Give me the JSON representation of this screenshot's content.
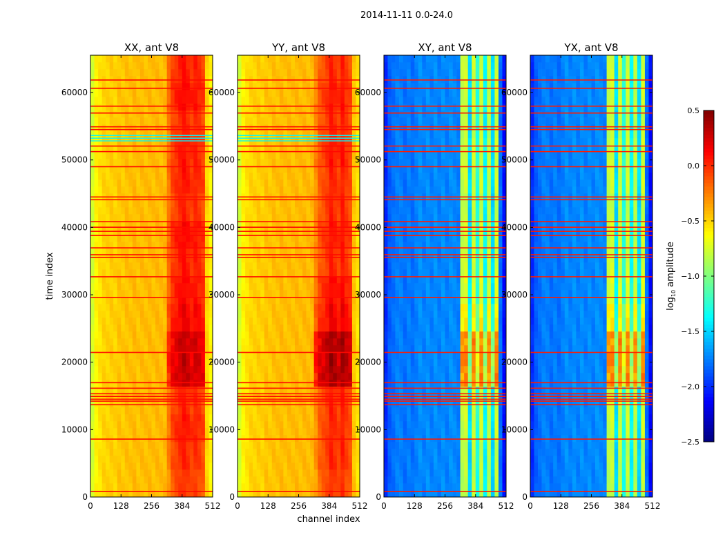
{
  "chart_data": {
    "type": "heatmap",
    "title": "2014-11-11 0.0-24.0",
    "xlabel": "channel index",
    "ylabel": "time index",
    "xlim": [
      0,
      512
    ],
    "ylim": [
      0,
      65536
    ],
    "x_ticks": [
      "0",
      "128",
      "256",
      "384",
      "512"
    ],
    "x_tick_values": [
      0,
      128,
      256,
      384,
      512
    ],
    "y_ticks": [
      "0",
      "10000",
      "20000",
      "30000",
      "40000",
      "50000",
      "60000"
    ],
    "y_tick_values": [
      0,
      10000,
      20000,
      30000,
      40000,
      50000,
      60000
    ],
    "colormap": "jet",
    "colorbar": {
      "label_main": "log",
      "label_sub": "10",
      "label_rest": " amplitude",
      "range": [
        -2.5,
        0.5
      ],
      "ticks": [
        "0.5",
        "0.0",
        "−0.5",
        "−1.0",
        "−1.5",
        "−2.0",
        "−2.5"
      ],
      "tick_values": [
        0.5,
        0.0,
        -0.5,
        -1.0,
        -1.5,
        -2.0,
        -2.5
      ]
    },
    "channel_band_width": 16,
    "time_segment_width": 4096,
    "hot_bands": [
      20,
      29
    ],
    "flagged_rows": [
      800,
      8570,
      13670,
      14200,
      14490,
      14900,
      15300,
      16120,
      16940,
      21430,
      29590,
      32650,
      35510,
      35920,
      36940,
      38780,
      39390,
      40000,
      40820,
      44080,
      44490,
      48980,
      51220,
      52040,
      54490,
      54900,
      56940,
      57960,
      60610,
      61840
    ],
    "panels": [
      {
        "title": "XX, ant V8",
        "channel_profile": [
          -0.75,
          -0.6,
          -0.55,
          -0.5,
          -0.5,
          -0.48,
          -0.5,
          -0.45,
          -0.47,
          -0.44,
          -0.45,
          -0.42,
          -0.45,
          -0.43,
          -0.44,
          -0.42,
          -0.44,
          -0.42,
          -0.43,
          -0.42,
          -0.3,
          -0.15,
          -0.1,
          -0.05,
          0.0,
          -0.05,
          -0.1,
          -0.05,
          -0.1,
          -0.15,
          -0.5,
          -0.6
        ],
        "hot_time_boost": [
          0,
          0.05,
          0.1,
          0.05,
          0.35,
          0.35,
          0.2,
          0.15,
          0.1,
          0.15,
          0.05,
          0.1,
          0.1,
          0.05,
          0.15,
          0.1
        ],
        "flag_value": 0.1,
        "low_rows": [
          52800,
          53200,
          53600
        ],
        "low_value": -1.4
      },
      {
        "title": "YY, ant V8",
        "channel_profile": [
          -0.75,
          -0.6,
          -0.55,
          -0.5,
          -0.5,
          -0.48,
          -0.5,
          -0.45,
          -0.47,
          -0.44,
          -0.45,
          -0.42,
          -0.45,
          -0.43,
          -0.44,
          -0.42,
          -0.44,
          -0.42,
          -0.43,
          -0.42,
          -0.35,
          -0.2,
          -0.15,
          -0.1,
          0.0,
          -0.05,
          -0.1,
          0.0,
          -0.1,
          -0.15,
          -0.45,
          -0.55
        ],
        "hot_time_boost": [
          0,
          0.05,
          0.05,
          0.05,
          0.45,
          0.45,
          0.2,
          0.15,
          0.05,
          0.1,
          0.05,
          0.05,
          0.1,
          0.05,
          0.1,
          0.05
        ],
        "flag_value": 0.1,
        "low_rows": [
          52800,
          53200,
          53600
        ],
        "low_value": -1.4
      },
      {
        "title": "XY, ant V8",
        "channel_profile": [
          -2.0,
          -1.85,
          -1.8,
          -1.75,
          -1.75,
          -1.8,
          -1.75,
          -1.8,
          -1.75,
          -1.7,
          -1.75,
          -1.7,
          -1.75,
          -1.7,
          -1.75,
          -1.7,
          -1.75,
          -1.7,
          -1.72,
          -1.75,
          -0.85,
          -0.8,
          -1.5,
          -0.8,
          -1.3,
          -0.8,
          -1.4,
          -0.85,
          -1.5,
          -0.8,
          -1.8,
          -2.1
        ],
        "hot_time_boost": [
          0,
          0,
          0.05,
          0.05,
          0.6,
          0.6,
          0.25,
          0.1,
          0.05,
          0.05,
          0,
          0.05,
          0.05,
          0,
          0.05,
          0.05
        ],
        "flag_value": 0.05,
        "low_rows": [],
        "low_value": -2.4
      },
      {
        "title": "YX, ant V8",
        "channel_profile": [
          -2.0,
          -1.85,
          -1.8,
          -1.75,
          -1.75,
          -1.8,
          -1.75,
          -1.8,
          -1.75,
          -1.7,
          -1.75,
          -1.7,
          -1.75,
          -1.7,
          -1.75,
          -1.7,
          -1.75,
          -1.7,
          -1.72,
          -1.75,
          -0.85,
          -0.8,
          -1.5,
          -0.8,
          -1.3,
          -0.8,
          -1.4,
          -0.85,
          -1.5,
          -0.8,
          -1.8,
          -2.1
        ],
        "hot_time_boost": [
          0,
          0,
          0.05,
          0.05,
          0.6,
          0.6,
          0.25,
          0.1,
          0.05,
          0.05,
          0,
          0.05,
          0.05,
          0,
          0.05,
          0.05
        ],
        "flag_value": 0.05,
        "low_rows": [],
        "low_value": -2.4
      }
    ]
  }
}
